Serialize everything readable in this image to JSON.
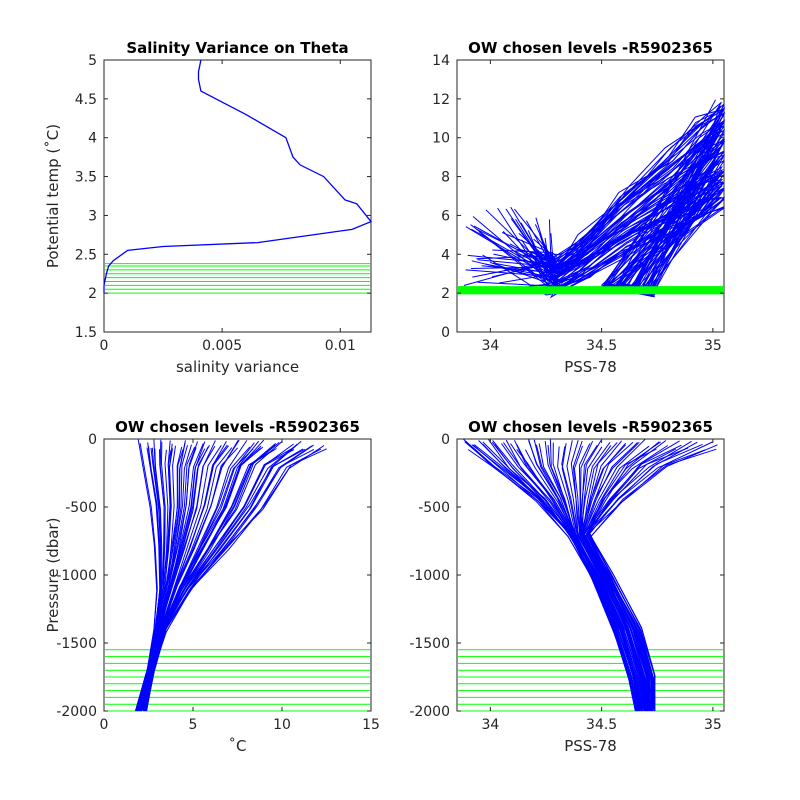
{
  "colors": {
    "profile": "#0000ff",
    "chosen_level": "#00ff00",
    "axes": "#262626"
  },
  "chart_data": [
    {
      "type": "line",
      "title": "Salinity Variance on Theta",
      "xlabel": "salinity variance",
      "ylabel": "Potential temp (˚C)",
      "xlim": [
        0,
        0.0113
      ],
      "ylim": [
        1.5,
        5
      ],
      "xticks": [
        0,
        0.005,
        0.01
      ],
      "xticklabels": [
        "0",
        "0.005",
        "0.01"
      ],
      "yticks": [
        1.5,
        2,
        2.5,
        3,
        3.5,
        4,
        4.5,
        5
      ],
      "yticklabels": [
        "1.5",
        "2",
        "2.5",
        "3",
        "3.5",
        "4",
        "4.5",
        "5"
      ],
      "series": [
        {
          "role": "variance",
          "x": [
            0.0041,
            0.004,
            0.004,
            0.0041,
            0.006,
            0.0077,
            0.008,
            0.0083,
            0.0093,
            0.0102,
            0.0107,
            0.0113,
            0.0105,
            0.01,
            0.0065,
            0.0025,
            0.001,
            0.0004,
            0.0002,
            0.0001,
            0.0,
            0.0
          ],
          "y": [
            5.0,
            4.85,
            4.75,
            4.6,
            4.3,
            4.0,
            3.75,
            3.65,
            3.5,
            3.2,
            3.15,
            2.92,
            2.82,
            2.8,
            2.65,
            2.6,
            2.55,
            2.42,
            2.35,
            2.25,
            2.1,
            2.0
          ]
        },
        {
          "role": "levels",
          "levels": [
            2.0,
            2.05,
            2.1,
            2.15,
            2.2,
            2.25,
            2.3,
            2.35,
            2.38
          ]
        }
      ]
    },
    {
      "type": "line",
      "title": "OW chosen levels -R5902365",
      "xlabel": "PSS-78",
      "ylabel": "",
      "xlim": [
        33.85,
        35.05
      ],
      "ylim": [
        0,
        14
      ],
      "xticks": [
        34,
        34.5,
        35
      ],
      "xticklabels": [
        "34",
        "34.5",
        "35"
      ],
      "yticks": [
        0,
        2,
        4,
        6,
        8,
        10,
        12,
        14
      ],
      "yticklabels": [
        "0",
        "2",
        "4",
        "6",
        "8",
        "10",
        "12",
        "14"
      ],
      "series": [
        {
          "role": "envelope",
          "x": [
            33.87,
            34.02,
            34.18,
            34.28,
            34.3,
            34.42,
            34.6,
            34.8,
            34.95,
            35.04
          ],
          "y": [
            6.6,
            5.6,
            4.8,
            4.0,
            3.7,
            5.0,
            7.2,
            9.3,
            11.0,
            12.0
          ]
        },
        {
          "role": "envelope",
          "x": [
            33.88,
            34.05,
            34.2,
            34.32,
            34.5,
            34.65,
            34.73
          ],
          "y": [
            2.4,
            2.6,
            2.9,
            3.3,
            2.7,
            2.3,
            2.2
          ]
        },
        {
          "role": "levels",
          "levels": [
            2.0,
            2.05,
            2.1,
            2.15,
            2.2,
            2.25,
            2.3
          ]
        }
      ]
    },
    {
      "type": "line",
      "title": "OW chosen levels -R5902365",
      "xlabel": "˚C",
      "ylabel": "Pressure (dbar)",
      "xlim": [
        0,
        15
      ],
      "ylim": [
        -2000,
        0
      ],
      "xticks": [
        0,
        5,
        10,
        15
      ],
      "xticklabels": [
        "0",
        "5",
        "10",
        "15"
      ],
      "yticks": [
        -2000,
        -1500,
        -1000,
        -500,
        0
      ],
      "yticklabels": [
        "-2000",
        "-1500",
        "-1000",
        "-500",
        "0"
      ],
      "series": [
        {
          "role": "envelope",
          "x": [
            2.2,
            2.4,
            2.8,
            3.0,
            3.1,
            2.9,
            2.5,
            1.8
          ],
          "y": [
            0,
            -200,
            -500,
            -800,
            -1100,
            -1400,
            -1700,
            -2000
          ]
        },
        {
          "role": "envelope",
          "x": [
            12.5,
            10.5,
            9.0,
            7.0,
            5.0,
            3.5,
            2.8,
            2.4
          ],
          "y": [
            0,
            -300,
            -500,
            -800,
            -1100,
            -1400,
            -1700,
            -2000
          ]
        },
        {
          "role": "levels",
          "levels": [
            -1550,
            -1600,
            -1650,
            -1700,
            -1750,
            -1800,
            -1850,
            -1900,
            -1950,
            -2000
          ]
        }
      ]
    },
    {
      "type": "line",
      "title": "OW chosen levels -R5902365",
      "xlabel": "PSS-78",
      "ylabel": "",
      "xlim": [
        33.85,
        35.05
      ],
      "ylim": [
        -2000,
        0
      ],
      "xticks": [
        34,
        34.5,
        35
      ],
      "xticklabels": [
        "34",
        "34.5",
        "35"
      ],
      "yticks": [
        -2000,
        -1500,
        -1000,
        -500,
        0
      ],
      "yticklabels": [
        "-2000",
        "-1500",
        "-1000",
        "-500",
        "0"
      ],
      "series": [
        {
          "role": "envelope",
          "x": [
            33.87,
            34.0,
            34.2,
            34.35,
            34.45,
            34.55,
            34.62,
            34.65
          ],
          "y": [
            0,
            -200,
            -450,
            -700,
            -1000,
            -1400,
            -1750,
            -2000
          ]
        },
        {
          "role": "envelope",
          "x": [
            35.03,
            34.8,
            34.6,
            34.45,
            34.55,
            34.68,
            34.74,
            34.74
          ],
          "y": [
            -100,
            -200,
            -400,
            -700,
            -1000,
            -1400,
            -1700,
            -2000
          ]
        },
        {
          "role": "levels",
          "levels": [
            -1550,
            -1600,
            -1650,
            -1700,
            -1750,
            -1800,
            -1850,
            -1900,
            -1950,
            -2000
          ]
        }
      ]
    }
  ]
}
